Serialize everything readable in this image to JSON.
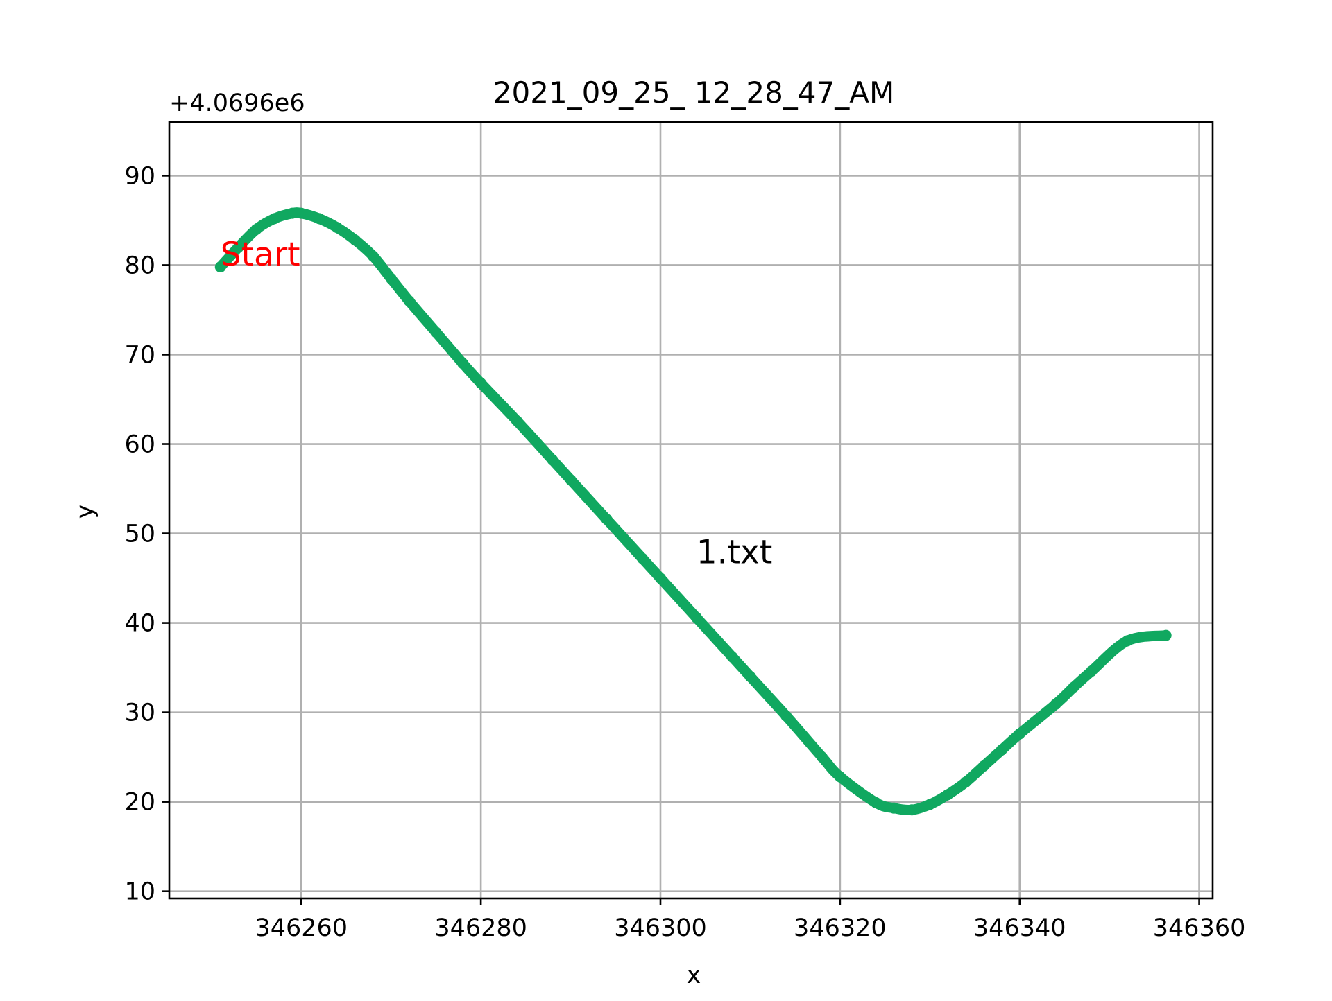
{
  "chart_data": {
    "type": "line",
    "title": "2021_09_25_ 12_28_47_AM",
    "xlabel": "x",
    "ylabel": "y",
    "y_offset_label": "+4.0696e6",
    "y_offset": 4069600,
    "xlim": [
      346245.3,
      346361.5
    ],
    "ylim": [
      9.2,
      96.0
    ],
    "xticks": [
      346260,
      346280,
      346300,
      346320,
      346340,
      346360
    ],
    "xtick_labels": [
      "346260",
      "346280",
      "346300",
      "346320",
      "346340",
      "346360"
    ],
    "yticks": [
      10,
      20,
      30,
      40,
      50,
      60,
      70,
      80,
      90
    ],
    "ytick_labels": [
      "10",
      "20",
      "30",
      "40",
      "50",
      "60",
      "70",
      "80",
      "90"
    ],
    "grid": true,
    "series": [
      {
        "color": "#10a860",
        "x": [
          346251.0,
          346253.0,
          346255.0,
          346257.0,
          346259.0,
          346260.0,
          346262.0,
          346264.0,
          346266.0,
          346268.0,
          346270.0,
          346272.0,
          346275.0,
          346278.0,
          346280.0,
          346284.0,
          346288.0,
          346290.0,
          346294.0,
          346298.0,
          346300.0,
          346304.0,
          346308.0,
          346310.0,
          346314.0,
          346318.0,
          346320.0,
          346324.0,
          346326.0,
          346328.0,
          346330.0,
          346332.0,
          346334.0,
          346336.0,
          346338.0,
          346340.0,
          346344.0,
          346346.0,
          346348.0,
          346352.0,
          346356.3
        ],
        "y": [
          79.8,
          82.0,
          84.0,
          85.2,
          85.8,
          85.8,
          85.2,
          84.2,
          82.8,
          81.0,
          78.5,
          76.0,
          72.5,
          69.0,
          66.8,
          62.6,
          58.2,
          56.0,
          51.6,
          47.2,
          45.0,
          40.6,
          36.2,
          34.0,
          29.6,
          25.0,
          22.8,
          19.9,
          19.3,
          19.1,
          19.7,
          20.8,
          22.2,
          24.0,
          25.8,
          27.6,
          30.9,
          32.8,
          34.6,
          38.0,
          38.6
        ]
      }
    ],
    "annotations": [
      {
        "text": "Start",
        "x": 346251.0,
        "y": 79.8,
        "color": "#ff0000"
      },
      {
        "text": "1.txt",
        "x": 346304.0,
        "y": 46.5,
        "color": "#000000"
      }
    ]
  }
}
